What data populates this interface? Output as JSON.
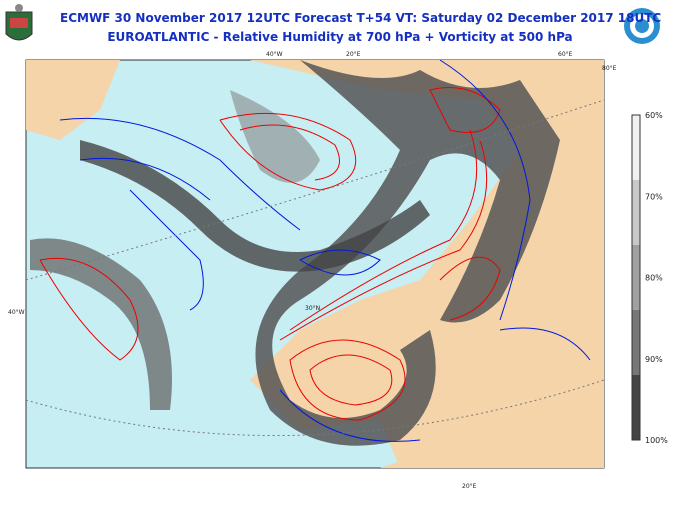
{
  "header": {
    "line1": "ECMWF 30 November 2017 12UTC Forecast T+54 VT: Saturday 02 December 2017 18UTC",
    "line2": "EUROATLANTIC - Relative Humidity at 700 hPa + Vorticity at 500 hPa"
  },
  "colorbar": {
    "labels": [
      "60%",
      "70%",
      "80%",
      "90%",
      "100%"
    ]
  },
  "map": {
    "labels": [
      "40°W",
      "20°E",
      "60°E",
      "80°E",
      "40°W",
      "30°N",
      "20°E"
    ]
  }
}
